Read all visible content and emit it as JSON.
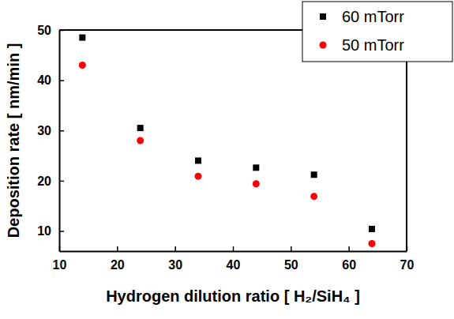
{
  "chart_data": {
    "type": "scatter",
    "x_label": "Hydrogen dilution ratio [ H₂/SiH₄ ]",
    "y_label": "Deposition rate [ nm/min ]",
    "x": [
      14,
      24,
      34,
      44,
      54,
      64
    ],
    "series": [
      {
        "name": "60 mTorr",
        "color": "#000000",
        "marker": "square",
        "values": [
          48.5,
          30.5,
          24,
          22.6,
          21.2,
          10.4
        ]
      },
      {
        "name": "50 mTorr",
        "color": "#ff0000",
        "marker": "circle",
        "values": [
          43,
          28,
          20.9,
          19.4,
          16.9,
          7.5
        ]
      }
    ],
    "xlim": [
      10,
      70
    ],
    "xticks": [
      10,
      20,
      30,
      40,
      50,
      60,
      70
    ],
    "ylim": [
      6,
      50
    ],
    "yticks": [
      10,
      20,
      30,
      40,
      50
    ],
    "grid": false,
    "legend": "top-right"
  }
}
